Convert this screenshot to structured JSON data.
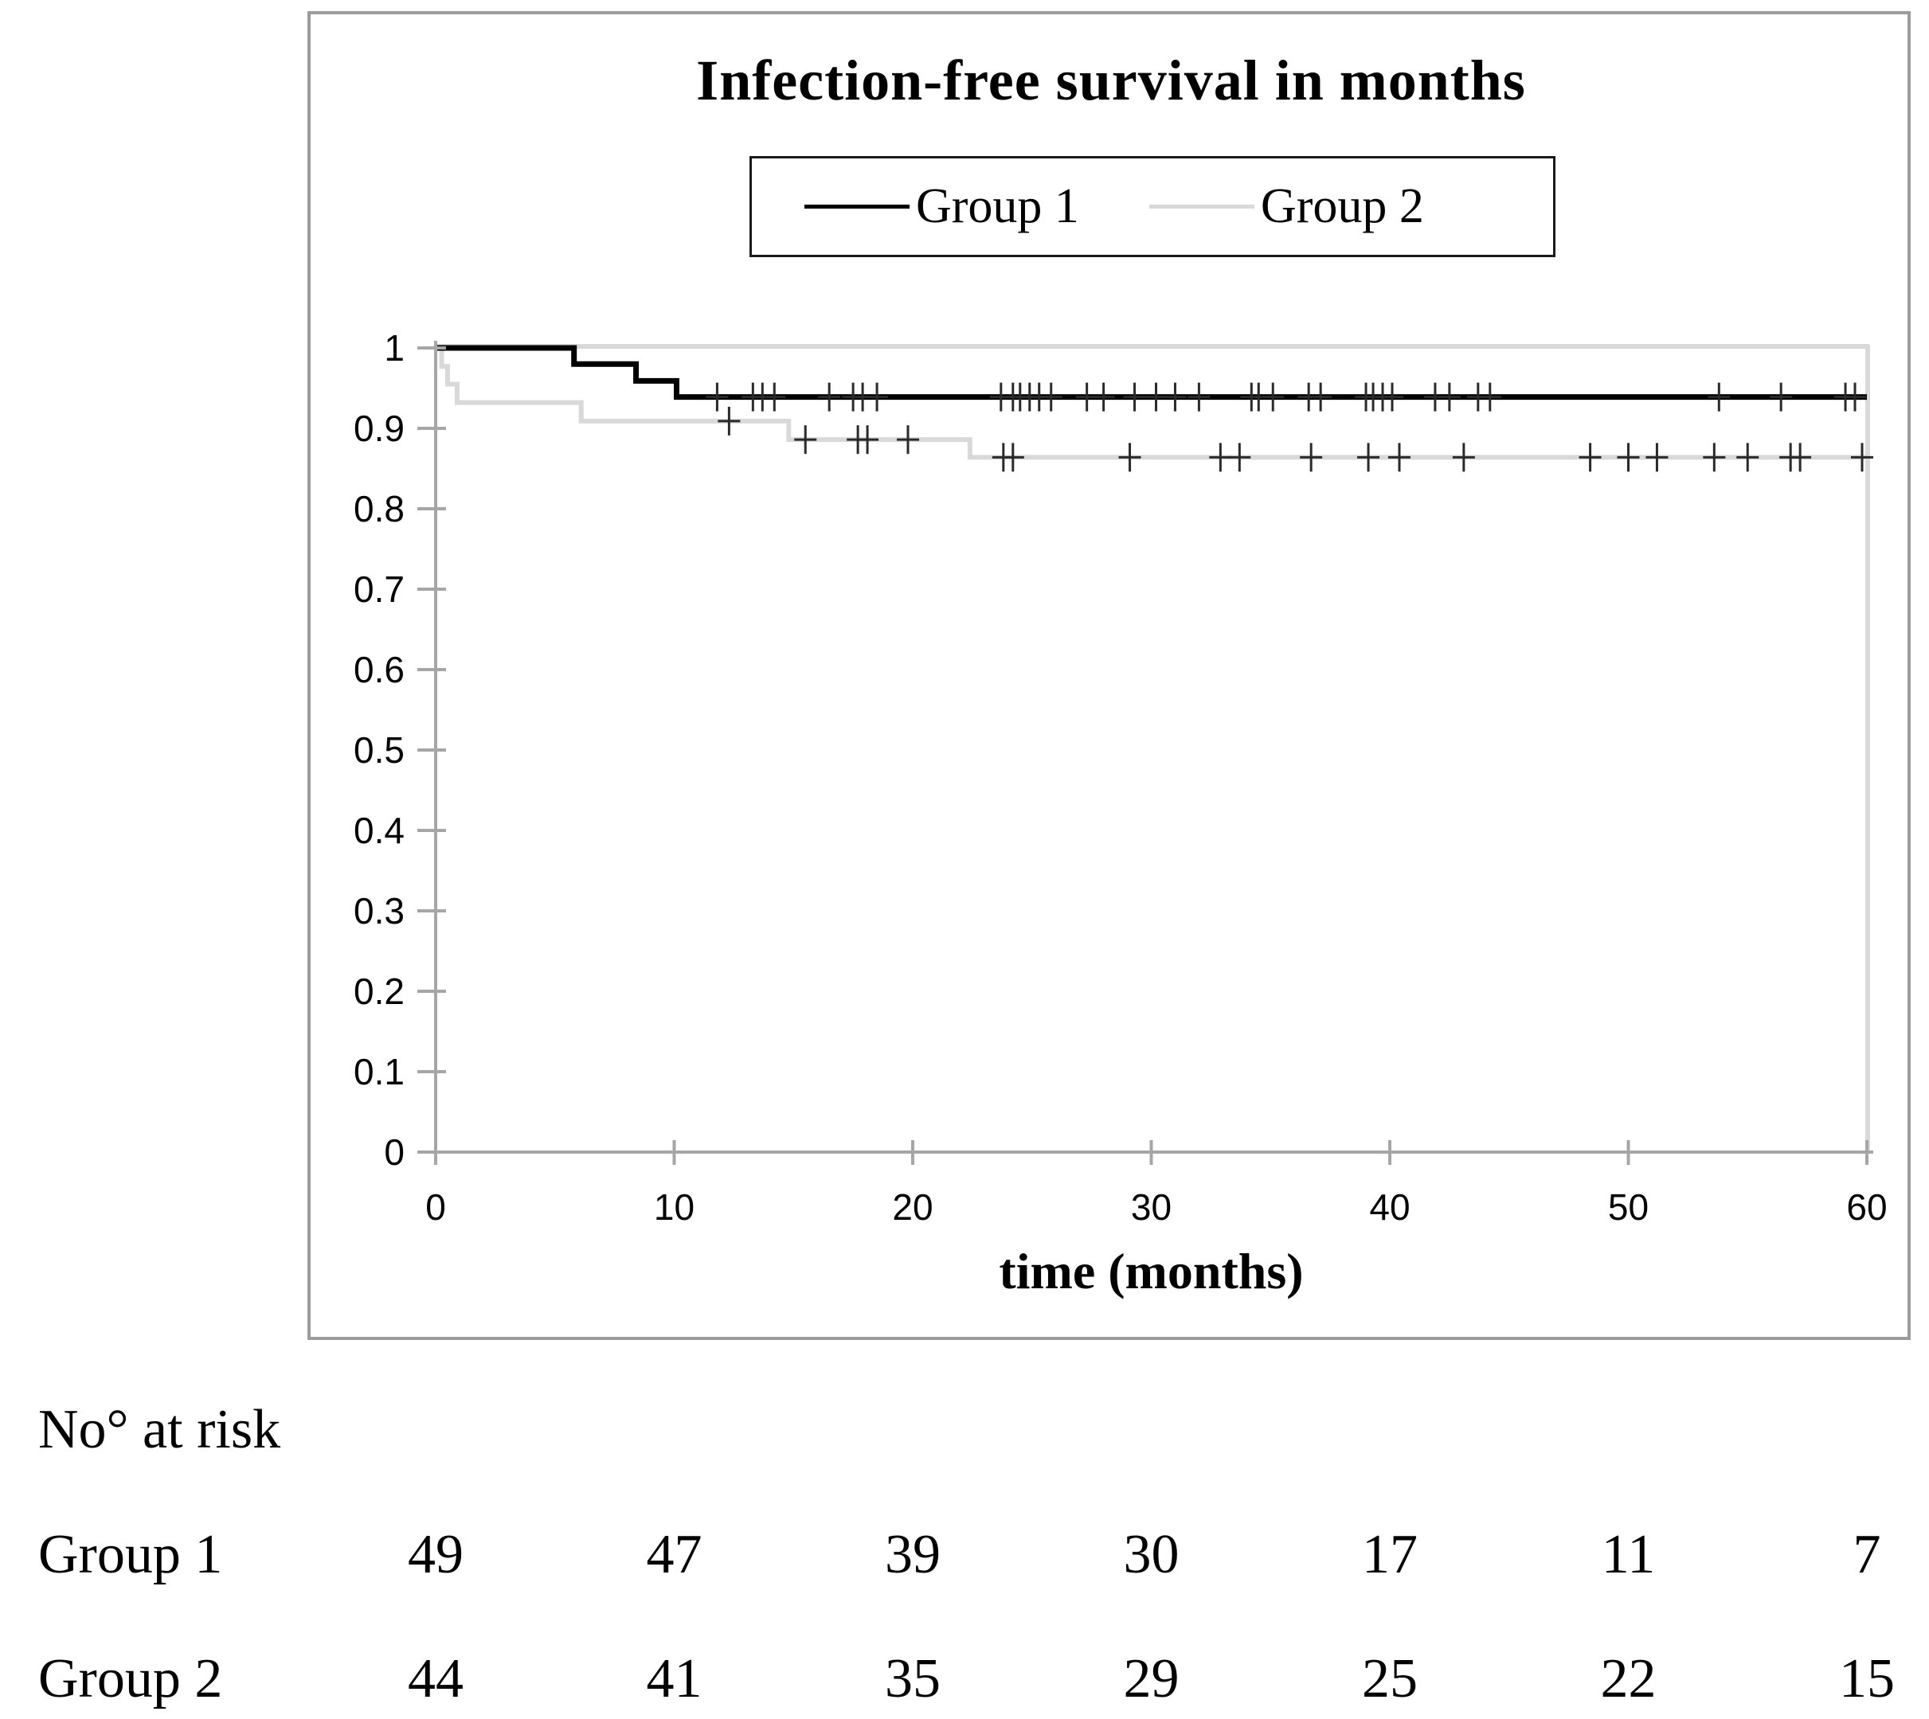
{
  "title": "Infection-free survival in months",
  "legend": {
    "items": [
      {
        "label": "Group 1",
        "color": "#000000"
      },
      {
        "label": "Group 2",
        "color": "#d9d9d9"
      }
    ]
  },
  "axes": {
    "xlabel": "time (months)",
    "y_tick_labels": [
      "1",
      "0.9",
      "0.8",
      "0.7",
      "0.6",
      "0.5",
      "0.4",
      "0.3",
      "0.2",
      "0.1",
      "0"
    ],
    "y_tick_values": [
      1,
      0.9,
      0.8,
      0.7,
      0.6,
      0.5,
      0.4,
      0.3,
      0.2,
      0.1,
      0
    ],
    "x_tick_labels": [
      "0",
      "10",
      "20",
      "30",
      "40",
      "50",
      "60"
    ],
    "x_tick_values": [
      0,
      10,
      20,
      30,
      40,
      50,
      60
    ]
  },
  "risk_table": {
    "heading": "No° at risk",
    "rows": [
      {
        "label": "Group 1",
        "values": [
          "49",
          "47",
          "39",
          "30",
          "17",
          "11",
          "7"
        ]
      },
      {
        "label": "Group 2",
        "values": [
          "44",
          "41",
          "35",
          "29",
          "25",
          "22",
          "15"
        ]
      }
    ]
  },
  "chart_data": {
    "type": "line",
    "subtype": "kaplan-meier-step",
    "title": "Infection-free survival in months",
    "xlabel": "time (months)",
    "ylabel": "",
    "xlim": [
      0,
      60
    ],
    "ylim": [
      0,
      1
    ],
    "grid": false,
    "legend_position": "top-center-boxed",
    "series": [
      {
        "name": "Group 1",
        "color": "#000000",
        "stroke_width": 7,
        "start": [
          0,
          1.0
        ],
        "steps": [
          [
            5.8,
            0.98
          ],
          [
            8.4,
            0.959
          ],
          [
            10.1,
            0.939
          ]
        ],
        "final_value": 0.939,
        "censor_marks": [
          [
            11.8,
            0.939
          ],
          [
            13.3,
            0.939
          ],
          [
            13.7,
            0.939
          ],
          [
            14.2,
            0.939
          ],
          [
            16.5,
            0.939
          ],
          [
            17.5,
            0.939
          ],
          [
            17.9,
            0.939
          ],
          [
            18.5,
            0.939
          ],
          [
            23.7,
            0.939
          ],
          [
            24.2,
            0.939
          ],
          [
            24.5,
            0.939
          ],
          [
            24.9,
            0.939
          ],
          [
            25.3,
            0.939
          ],
          [
            25.8,
            0.939
          ],
          [
            27.3,
            0.939
          ],
          [
            28.0,
            0.939
          ],
          [
            29.3,
            0.939
          ],
          [
            30.2,
            0.939
          ],
          [
            31.0,
            0.939
          ],
          [
            32.0,
            0.939
          ],
          [
            34.2,
            0.939
          ],
          [
            34.5,
            0.939
          ],
          [
            35.1,
            0.939
          ],
          [
            36.6,
            0.939
          ],
          [
            37.1,
            0.939
          ],
          [
            39.0,
            0.939
          ],
          [
            39.3,
            0.939
          ],
          [
            39.7,
            0.939
          ],
          [
            40.1,
            0.939
          ],
          [
            41.9,
            0.939
          ],
          [
            42.5,
            0.939
          ],
          [
            43.7,
            0.939
          ],
          [
            44.2,
            0.939
          ],
          [
            53.8,
            0.939
          ],
          [
            56.4,
            0.939
          ],
          [
            59.1,
            0.939
          ],
          [
            59.5,
            0.939
          ]
        ]
      },
      {
        "name": "Group 2",
        "color": "#d9d9d9",
        "stroke_width": 6,
        "start": [
          0,
          1.0
        ],
        "steps": [
          [
            0.25,
            0.977
          ],
          [
            0.5,
            0.955
          ],
          [
            0.9,
            0.932
          ],
          [
            6.1,
            0.909
          ],
          [
            14.8,
            0.886
          ],
          [
            22.4,
            0.864
          ]
        ],
        "final_value": 0.864,
        "censor_marks": [
          [
            12.3,
            0.909
          ],
          [
            15.5,
            0.886
          ],
          [
            17.7,
            0.886
          ],
          [
            18.1,
            0.886
          ],
          [
            19.8,
            0.886
          ],
          [
            23.8,
            0.864
          ],
          [
            24.2,
            0.864
          ],
          [
            29.1,
            0.864
          ],
          [
            32.9,
            0.864
          ],
          [
            33.7,
            0.864
          ],
          [
            36.7,
            0.864
          ],
          [
            39.1,
            0.864
          ],
          [
            40.4,
            0.864
          ],
          [
            43.1,
            0.864
          ],
          [
            48.4,
            0.864
          ],
          [
            50.0,
            0.864
          ],
          [
            51.2,
            0.864
          ],
          [
            53.6,
            0.864
          ],
          [
            55.0,
            0.864
          ],
          [
            56.8,
            0.864
          ],
          [
            57.2,
            0.864
          ],
          [
            59.8,
            0.864
          ]
        ]
      }
    ],
    "colors": {
      "outer_border": "#9c9c9c",
      "plot_border": "#d9d9d9",
      "axis": "#a6a6a6",
      "censor_mark": "#2a2a2a",
      "text": "#000000"
    }
  }
}
